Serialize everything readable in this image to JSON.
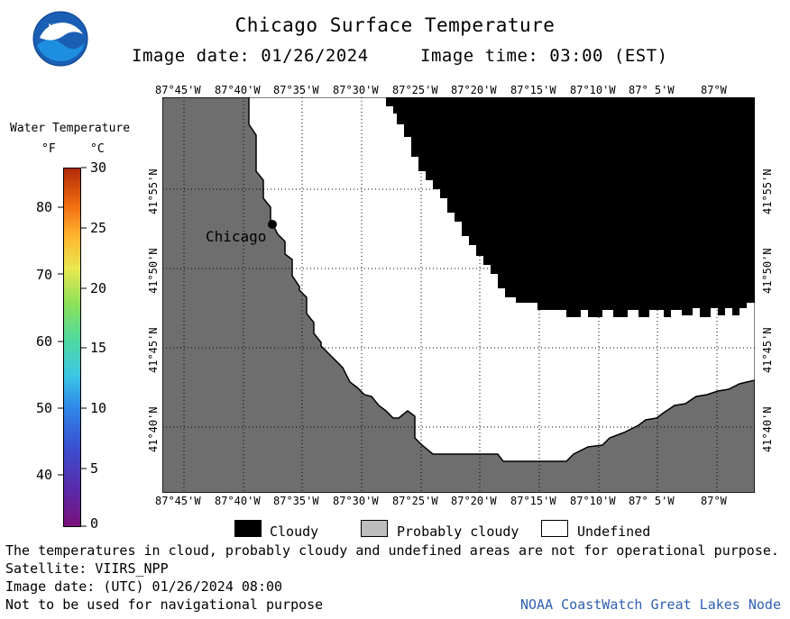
{
  "header": {
    "title": "Chicago Surface Temperature",
    "image_date": "Image date: 01/26/2024",
    "image_time": "Image time: 03:00 (EST)",
    "logo_text": "NOAA"
  },
  "map": {
    "lon_labels": [
      "87°45'W",
      "87°40'W",
      "87°35'W",
      "87°30'W",
      "87°25'W",
      "87°20'W",
      "87°15'W",
      "87°10'W",
      "87° 5'W",
      "87°W"
    ],
    "lat_labels": [
      "41°55'N",
      "41°50'N",
      "41°45'N",
      "41°40'N"
    ],
    "city_label": "Chicago",
    "colors": {
      "land": "#6e6e6e",
      "cloudy": "#000000",
      "undefined": "#ffffff",
      "probably_cloudy": "#bdbdbd",
      "grid": "#000000"
    }
  },
  "colorbar": {
    "title": "Water Temperature",
    "unit_f": "°F",
    "unit_c": "°C",
    "f_ticks": [
      "80",
      "70",
      "60",
      "50",
      "40"
    ],
    "c_ticks": [
      "30",
      "25",
      "20",
      "15",
      "10",
      "5",
      "0"
    ]
  },
  "legend": {
    "cloudy": "Cloudy",
    "probably_cloudy": "Probably cloudy",
    "undefined": "Undefined"
  },
  "footer": {
    "note": "The temperatures in cloud, probably cloudy and undefined areas are not for operational purpose.",
    "satellite": "Satellite: VIIRS_NPP",
    "utc_date": "Image date: (UTC) 01/26/2024  08:00",
    "nav_warning": "Not to be used for navigational purpose",
    "credit": "NOAA CoastWatch Great Lakes Node"
  }
}
